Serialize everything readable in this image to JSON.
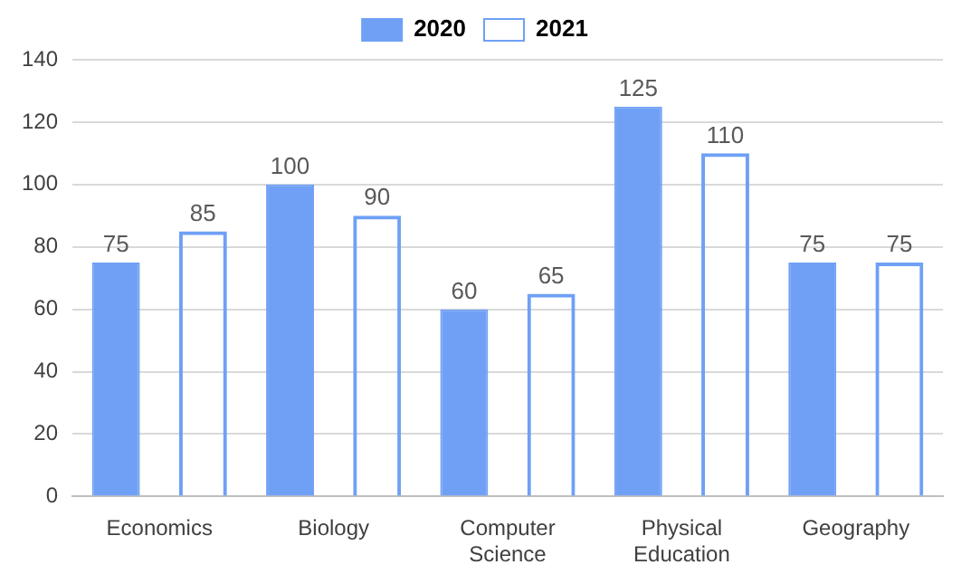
{
  "chart_data": {
    "type": "bar",
    "categories": [
      "Economics",
      "Biology",
      "Computer Science",
      "Physical Education",
      "Geography"
    ],
    "series": [
      {
        "name": "2020",
        "color": "#6fa0f5",
        "values": [
          75,
          100,
          60,
          125,
          75
        ]
      },
      {
        "name": "2021",
        "color": "#6fa0f5",
        "values": [
          85,
          90,
          65,
          110,
          75
        ]
      }
    ],
    "ylim": [
      0,
      140
    ],
    "yticks": [
      0,
      20,
      40,
      60,
      80,
      100,
      120,
      140
    ],
    "grid": "y",
    "legend": "top",
    "data_labels": true
  }
}
